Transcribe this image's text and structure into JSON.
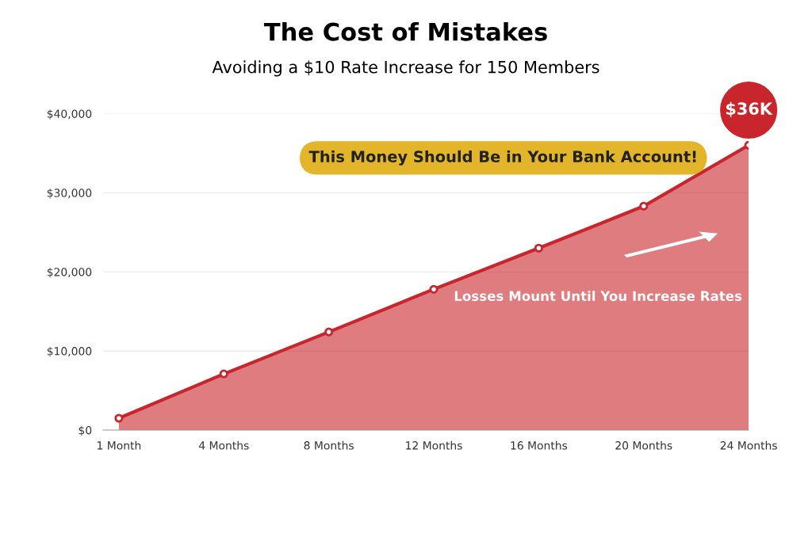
{
  "chart_data": {
    "type": "area",
    "title": "The Cost of Mistakes",
    "subtitle": "Avoiding a $10 Rate Increase for 150 Members",
    "categories": [
      "1 Month",
      "4 Months",
      "8 Months",
      "12 Months",
      "16 Months",
      "20 Months",
      "24 Months"
    ],
    "values": [
      1500,
      7100,
      12400,
      17800,
      23000,
      28300,
      36000
    ],
    "value_labels": [
      null,
      null,
      null,
      null,
      null,
      null,
      "$36K"
    ],
    "color": "#c8252c",
    "ylim": [
      0,
      40000
    ],
    "yticks": [
      {
        "value": 0,
        "label": "$0"
      },
      {
        "value": 10000,
        "label": "$10,000"
      },
      {
        "value": 20000,
        "label": "$20,000"
      },
      {
        "value": 30000,
        "label": "$30,000"
      },
      {
        "value": 40000,
        "label": "$40,000"
      }
    ],
    "grid": "y",
    "marker": "circle",
    "line_style": "solid",
    "annotations": [
      "This Money Should Be in Your Bank Account!",
      "Losses Mount Until You Increase Rates"
    ]
  }
}
